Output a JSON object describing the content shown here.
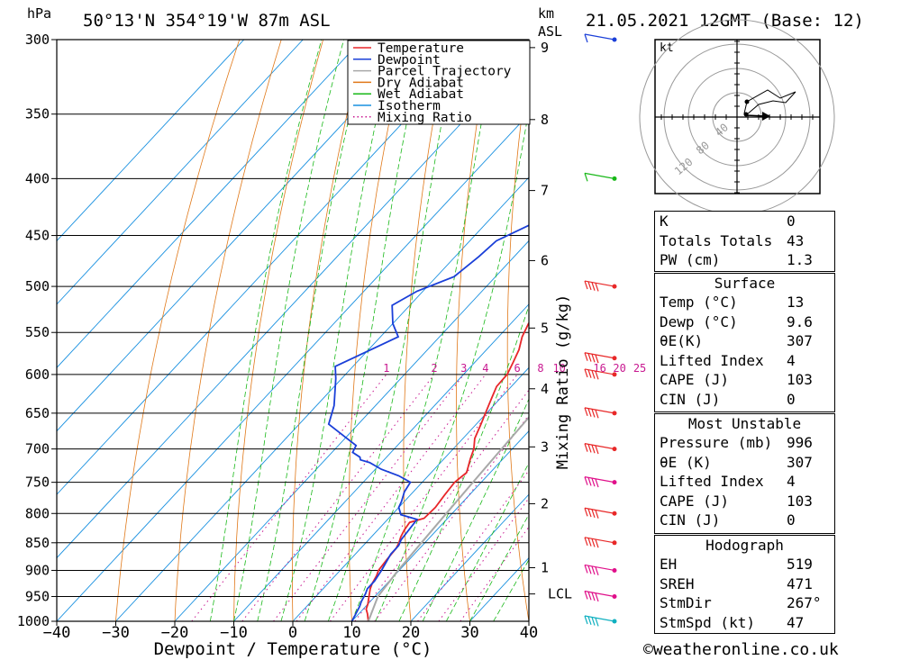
{
  "header": {
    "pressure_unit": "hPa",
    "location": "50°13'N 354°19'W 87m ASL",
    "height_unit": "km",
    "height_unit_sub": "ASL",
    "datetime": "21.05.2021 12GMT (Base: 12)"
  },
  "chart_data": {
    "type": "line",
    "xlabel": "Dewpoint / Temperature (°C)",
    "ylabel_left": "hPa",
    "ylabel_right": "Mixing Ratio (g/kg)",
    "xlim": [
      -40,
      40
    ],
    "ylim": [
      1000,
      300
    ],
    "x_ticks": [
      -40,
      -30,
      -20,
      -10,
      0,
      10,
      20,
      30,
      40
    ],
    "pressure_levels": [
      300,
      350,
      400,
      450,
      500,
      550,
      600,
      650,
      700,
      750,
      800,
      850,
      900,
      950,
      1000
    ],
    "height_ticks_km": [
      {
        "label": "9",
        "p": 305
      },
      {
        "label": "8",
        "p": 354
      },
      {
        "label": "7",
        "p": 410
      },
      {
        "label": "6",
        "p": 474
      },
      {
        "label": "5",
        "p": 545
      },
      {
        "label": "4",
        "p": 618
      },
      {
        "label": "3",
        "p": 697
      },
      {
        "label": "2",
        "p": 784
      },
      {
        "label": "1",
        "p": 895
      }
    ],
    "lcl": {
      "label": "LCL",
      "p": 945
    },
    "mixing_ratio_labels": [
      "1",
      "2",
      "3",
      "4",
      "6",
      "8",
      "10",
      "16",
      "20",
      "25"
    ],
    "mixing_ratio_values": [
      1,
      2,
      3,
      4,
      6,
      8,
      10,
      16,
      20,
      25
    ],
    "legend": {
      "position": "top-right",
      "entries": [
        {
          "name": "Temperature",
          "color": "#e8262a",
          "style": "solid"
        },
        {
          "name": "Dewpoint",
          "color": "#1a3fd8",
          "style": "solid"
        },
        {
          "name": "Parcel Trajectory",
          "color": "#a8a8a8",
          "style": "solid"
        },
        {
          "name": "Dry Adiabat",
          "color": "#e07818",
          "style": "solid"
        },
        {
          "name": "Wet Adiabat",
          "color": "#18b818",
          "style": "solid"
        },
        {
          "name": "Isotherm",
          "color": "#1890e0",
          "style": "solid"
        },
        {
          "name": "Mixing Ratio",
          "color": "#c81890",
          "style": "dotted"
        }
      ]
    },
    "series": [
      {
        "name": "Temperature",
        "points": [
          [
            12.8,
            1000
          ],
          [
            11.5,
            985
          ],
          [
            10.5,
            975
          ],
          [
            10,
            965
          ],
          [
            9,
            950
          ],
          [
            8,
            935
          ],
          [
            7.5,
            925
          ],
          [
            7,
            910
          ],
          [
            6.5,
            900
          ],
          [
            6.2,
            880
          ],
          [
            6,
            860
          ],
          [
            5.6,
            850
          ],
          [
            5,
            840
          ],
          [
            4.5,
            828
          ],
          [
            4.2,
            815
          ],
          [
            6,
            808
          ],
          [
            6.2,
            790
          ],
          [
            5.8,
            770
          ],
          [
            5.5,
            750
          ],
          [
            6,
            735
          ],
          [
            4.5,
            715
          ],
          [
            3.5,
            700
          ],
          [
            2,
            685
          ],
          [
            0.8,
            665
          ],
          [
            -0.5,
            645
          ],
          [
            -1.5,
            630
          ],
          [
            -2.5,
            615
          ],
          [
            -2.6,
            600
          ],
          [
            -3.5,
            585
          ],
          [
            -4.5,
            570
          ],
          [
            -6,
            555
          ],
          [
            -7,
            540
          ],
          [
            -7.3,
            525
          ],
          [
            -8,
            510
          ],
          [
            -9,
            490
          ],
          [
            -10,
            470
          ],
          [
            -11,
            450
          ],
          [
            -12.5,
            430
          ],
          [
            -14,
            410
          ],
          [
            -15.5,
            395
          ],
          [
            -15.8,
            385
          ],
          [
            -16.5,
            370
          ],
          [
            -17.3,
            365
          ],
          [
            -17.5,
            355
          ],
          [
            -19,
            345
          ],
          [
            -19,
            330
          ],
          [
            -20.5,
            315
          ],
          [
            -21.5,
            305
          ],
          [
            -22,
            300
          ]
        ]
      },
      {
        "name": "Dewpoint",
        "points": [
          [
            10,
            1000
          ],
          [
            9.5,
            985
          ],
          [
            9,
            970
          ],
          [
            8.5,
            960
          ],
          [
            8,
            945
          ],
          [
            7.5,
            935
          ],
          [
            7.5,
            920
          ],
          [
            7,
            900
          ],
          [
            6.5,
            885
          ],
          [
            6,
            870
          ],
          [
            6,
            855
          ],
          [
            5.5,
            845
          ],
          [
            5.2,
            825
          ],
          [
            5,
            810
          ],
          [
            1.5,
            802
          ],
          [
            0,
            790
          ],
          [
            -0.5,
            780
          ],
          [
            -1.5,
            765
          ],
          [
            -2,
            750
          ],
          [
            -5,
            740
          ],
          [
            -9,
            730
          ],
          [
            -12,
            720
          ],
          [
            -14,
            716
          ],
          [
            -14.5,
            712
          ],
          [
            -16.5,
            705
          ],
          [
            -17,
            695
          ],
          [
            -25,
            665
          ],
          [
            -27,
            640
          ],
          [
            -31,
            605
          ],
          [
            -33,
            590
          ],
          [
            -27,
            555
          ],
          [
            -30,
            540
          ],
          [
            -33,
            520
          ],
          [
            -31,
            505
          ],
          [
            -27,
            490
          ],
          [
            -26,
            470
          ],
          [
            -25.5,
            455
          ],
          [
            -19,
            425
          ],
          [
            -18.5,
            405
          ],
          [
            -23,
            385
          ],
          [
            -19,
            380
          ],
          [
            -12,
            377
          ],
          [
            -10,
            372
          ],
          [
            -9.5,
            365
          ],
          [
            -16,
            355
          ],
          [
            -20,
            350
          ],
          [
            -24,
            338
          ],
          [
            -17,
            325
          ],
          [
            -16.5,
            318
          ],
          [
            -15.5,
            305
          ],
          [
            -18,
            300
          ]
        ]
      },
      {
        "name": "Parcel Trajectory",
        "points": [
          [
            12.8,
            1000
          ],
          [
            10.5,
            950
          ],
          [
            9.8,
            900
          ],
          [
            9.4,
            850
          ],
          [
            9,
            800
          ],
          [
            8.6,
            750
          ],
          [
            8.2,
            700
          ],
          [
            7.8,
            650
          ],
          [
            7.2,
            600
          ],
          [
            6.5,
            550
          ],
          [
            5.7,
            500
          ],
          [
            4.8,
            450
          ],
          [
            3.8,
            400
          ],
          [
            2.7,
            350
          ],
          [
            1.5,
            300
          ]
        ]
      }
    ],
    "wind_barbs_altitudes_p": [
      300,
      400,
      500,
      580,
      600,
      650,
      700,
      750,
      800,
      850,
      900,
      950,
      1000
    ],
    "hodograph": {
      "unit": "kt",
      "ring_labels": [
        "40",
        "80",
        "120"
      ]
    }
  },
  "indices": {
    "general": [
      {
        "label": "K",
        "value": "0"
      },
      {
        "label": "Totals Totals",
        "value": "43"
      },
      {
        "label": "PW (cm)",
        "value": "1.3"
      }
    ],
    "surface_title": "Surface",
    "surface": [
      {
        "label": "Temp (°C)",
        "value": "13"
      },
      {
        "label": "Dewp (°C)",
        "value": "9.6"
      },
      {
        "label": "θE(K)",
        "value": "307"
      },
      {
        "label": "Lifted Index",
        "value": "4"
      },
      {
        "label": "CAPE (J)",
        "value": "103"
      },
      {
        "label": "CIN (J)",
        "value": "0"
      }
    ],
    "unstable_title": "Most Unstable",
    "unstable": [
      {
        "label": "Pressure (mb)",
        "value": "996"
      },
      {
        "label": "θE (K)",
        "value": "307"
      },
      {
        "label": "Lifted Index",
        "value": "4"
      },
      {
        "label": "CAPE (J)",
        "value": "103"
      },
      {
        "label": "CIN (J)",
        "value": "0"
      }
    ],
    "hodograph_title": "Hodograph",
    "hodograph": [
      {
        "label": "EH",
        "value": "519"
      },
      {
        "label": "SREH",
        "value": "471"
      },
      {
        "label": "StmDir",
        "value": "267°"
      },
      {
        "label": "StmSpd (kt)",
        "value": "47"
      }
    ]
  },
  "footer": {
    "copyright": "©weatheronline.co.uk"
  }
}
